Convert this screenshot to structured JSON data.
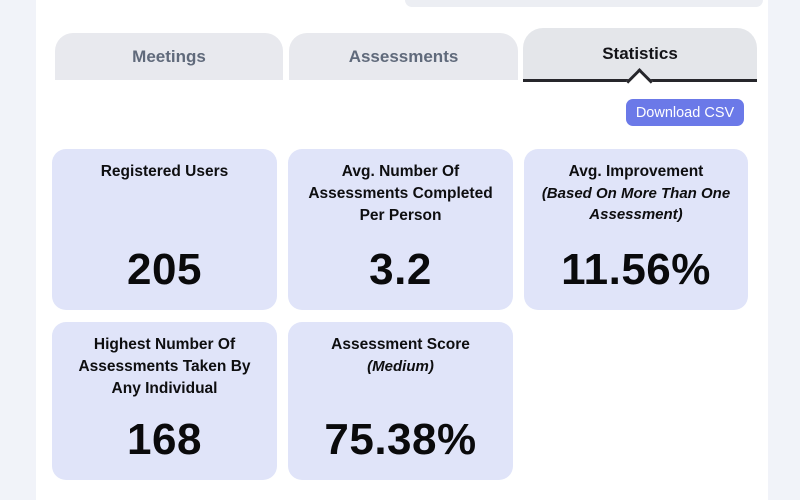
{
  "page": {
    "background_color": "#f1f3f9",
    "content_background_color": "#ffffff"
  },
  "tabs": {
    "items": [
      {
        "label": "Meetings",
        "active": false
      },
      {
        "label": "Assessments",
        "active": false
      },
      {
        "label": "Statistics",
        "active": true
      }
    ],
    "inactive_fill": "#e8e9ee",
    "active_fill": "#e4e6ea",
    "inactive_text_color": "#606a7b",
    "active_text_color": "#141418",
    "active_underline_color": "#26262b"
  },
  "toolbar": {
    "download_button_label": "Download CSV",
    "download_button_color": "#6b79e8"
  },
  "stats": {
    "card_fill": "#e0e4f9",
    "cards": [
      {
        "title": "Registered Users",
        "subtitle": "",
        "value": "205"
      },
      {
        "title": "Avg. Number Of Assessments Completed Per Person",
        "subtitle": "",
        "value": "3.2"
      },
      {
        "title": "Avg. Improvement",
        "subtitle": "(Based On More Than One Assessment)",
        "value": "11.56%"
      },
      {
        "title": "Highest Number Of Assessments Taken By Any Individual",
        "subtitle": "",
        "value": "168"
      },
      {
        "title": "Assessment Score",
        "subtitle": "(Medium)",
        "value": "75.38%"
      }
    ]
  }
}
